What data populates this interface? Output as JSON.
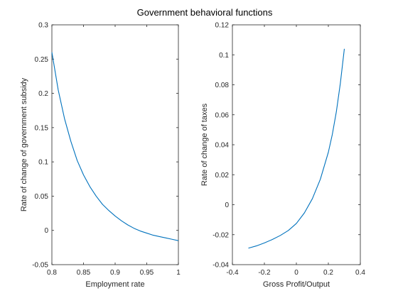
{
  "figure": {
    "title": "Government behavioral functions",
    "line_color": "#0072BD",
    "axis_color": "#262626"
  },
  "chart_data": [
    {
      "type": "line",
      "xlabel": "Employment rate",
      "ylabel": "Rate of change of government subsidy",
      "xlim": [
        0.8,
        1.0
      ],
      "ylim": [
        -0.05,
        0.3
      ],
      "xticks": [
        0.8,
        0.85,
        0.9,
        0.95,
        1.0
      ],
      "xtick_labels": [
        "0.8",
        "0.85",
        "0.9",
        "0.95",
        "1"
      ],
      "yticks": [
        -0.05,
        0,
        0.05,
        0.1,
        0.15,
        0.2,
        0.25,
        0.3
      ],
      "ytick_labels": [
        "-0.05",
        "0",
        "0.05",
        "0.1",
        "0.15",
        "0.2",
        "0.25",
        "0.3"
      ],
      "grid": false,
      "series": [
        {
          "x": [
            0.8,
            0.81,
            0.82,
            0.83,
            0.84,
            0.85,
            0.86,
            0.87,
            0.88,
            0.89,
            0.9,
            0.91,
            0.92,
            0.93,
            0.94,
            0.95,
            0.96,
            0.97,
            0.98,
            0.99,
            1.0
          ],
          "y": [
            0.26,
            0.205,
            0.163,
            0.13,
            0.102,
            0.081,
            0.064,
            0.05,
            0.038,
            0.029,
            0.021,
            0.014,
            0.008,
            0.003,
            -0.001,
            -0.004,
            -0.007,
            -0.009,
            -0.011,
            -0.013,
            -0.015
          ]
        }
      ]
    },
    {
      "type": "line",
      "xlabel": "Gross Profit/Output",
      "ylabel": "Rate of change of taxes",
      "xlim": [
        -0.4,
        0.4
      ],
      "ylim": [
        -0.04,
        0.12
      ],
      "xticks": [
        -0.4,
        -0.2,
        0,
        0.2,
        0.4
      ],
      "xtick_labels": [
        "-0.4",
        "-0.2",
        "0",
        "0.2",
        "0.4"
      ],
      "yticks": [
        -0.04,
        -0.02,
        0,
        0.02,
        0.04,
        0.06,
        0.08,
        0.1,
        0.12
      ],
      "ytick_labels": [
        "-0.04",
        "-0.02",
        "0",
        "0.02",
        "0.04",
        "0.06",
        "0.08",
        "0.1",
        "0.12"
      ],
      "grid": false,
      "series": [
        {
          "x": [
            -0.3,
            -0.25,
            -0.2,
            -0.15,
            -0.1,
            -0.05,
            0.0,
            0.05,
            0.1,
            0.15,
            0.2,
            0.225,
            0.25,
            0.275,
            0.3
          ],
          "y": [
            -0.029,
            -0.0275,
            -0.0255,
            -0.0232,
            -0.0205,
            -0.0172,
            -0.0125,
            -0.0055,
            0.004,
            0.017,
            0.035,
            0.047,
            0.062,
            0.081,
            0.104
          ]
        }
      ]
    }
  ]
}
